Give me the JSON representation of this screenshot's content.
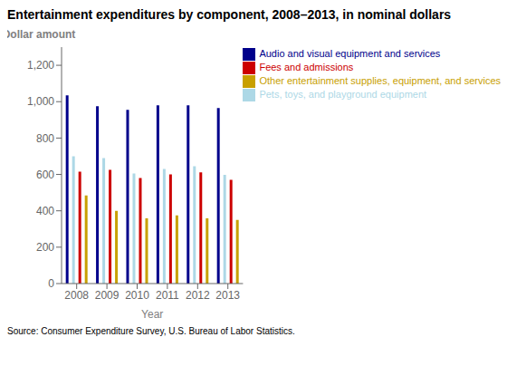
{
  "chart_data": {
    "type": "bar",
    "title": "Entertainment expenditures by component, 2008–2013, in nominal dollars",
    "y_label": "Dollar amount",
    "x_label": "Year",
    "annotations": [
      "Source: Consumer Expenditure Survey, U.S. Bureau of Labor Statistics."
    ],
    "categories": [
      "2008",
      "2009",
      "2010",
      "2011",
      "2012",
      "2013"
    ],
    "series": [
      {
        "name": "Audio and visual equipment and services",
        "color": "#00008B",
        "values": [
          1035,
          975,
          955,
          980,
          980,
          965
        ]
      },
      {
        "name": "Pets, toys, and playground equipment",
        "color": "#ADD8E6",
        "values": [
          700,
          690,
          605,
          630,
          645,
          598
        ]
      },
      {
        "name": "Fees and admissions",
        "color": "#CC0000",
        "values": [
          615,
          625,
          580,
          600,
          612,
          570
        ]
      },
      {
        "name": "Other entertainment supplies, equipment, and services",
        "color": "#C8A000",
        "values": [
          485,
          400,
          358,
          375,
          358,
          350
        ]
      }
    ],
    "ylim": [
      0,
      1300
    ],
    "yticks": [
      0,
      200,
      400,
      600,
      800,
      {
        "value": 1000,
        "label": "1,000"
      },
      {
        "value": 1200,
        "label": "1,200"
      }
    ],
    "grid": false,
    "legend": "top"
  }
}
